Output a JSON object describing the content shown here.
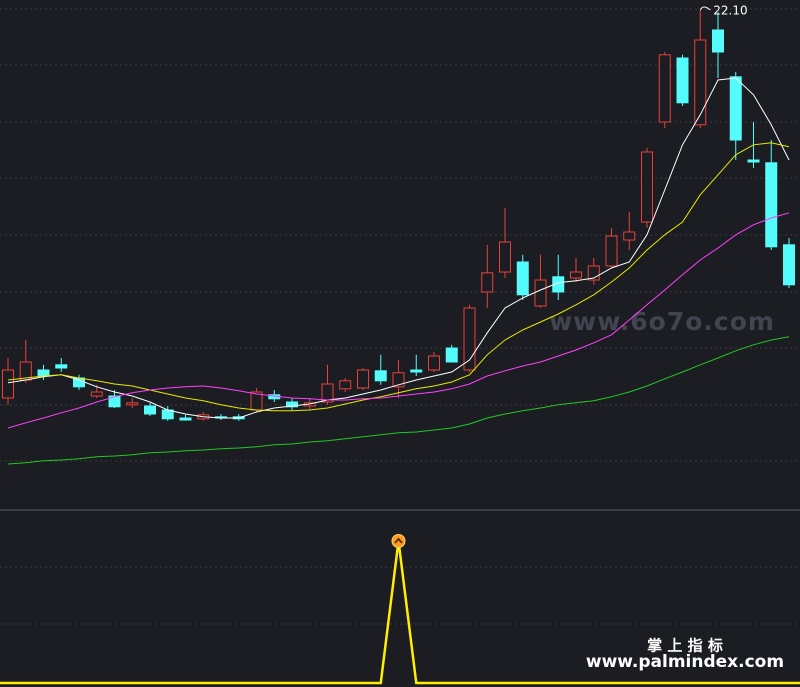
{
  "chart_data": [
    {
      "type": "candlestick",
      "up_color": "#e8413a",
      "down_color": "#54fcfc",
      "ylim": [
        9.6,
        22.35
      ],
      "open": [
        12.4,
        12.85,
        13.1,
        13.23,
        12.9,
        12.45,
        12.45,
        12.23,
        12.2,
        12.1,
        11.9,
        11.88,
        11.93,
        11.93,
        12.1,
        12.48,
        12.3,
        12.2,
        12.3,
        12.63,
        12.65,
        13.08,
        12.68,
        13.1,
        13.1,
        13.65,
        13.1,
        15.05,
        15.55,
        15.8,
        14.7,
        15.43,
        15.4,
        15.35,
        15.7,
        16.35,
        16.8,
        19.3,
        20.9,
        19.23,
        21.6,
        20.43,
        18.35,
        18.28,
        16.23
      ],
      "high": [
        13.4,
        13.85,
        13.23,
        13.4,
        12.98,
        12.73,
        12.6,
        12.4,
        12.28,
        12.2,
        11.98,
        12.05,
        12.0,
        12.0,
        12.65,
        12.6,
        12.4,
        12.4,
        13.23,
        12.9,
        13.15,
        13.48,
        13.35,
        13.48,
        13.55,
        13.73,
        14.73,
        16.23,
        17.15,
        15.98,
        15.98,
        15.98,
        15.9,
        15.9,
        16.65,
        17.05,
        18.65,
        21.05,
        20.98,
        22.1,
        22.05,
        20.55,
        19.3,
        18.85,
        16.4
      ],
      "low": [
        12.23,
        12.78,
        12.85,
        13.05,
        12.6,
        12.4,
        12.15,
        12.15,
        11.95,
        11.83,
        11.83,
        11.83,
        11.85,
        11.83,
        12.05,
        12.3,
        12.1,
        12.1,
        12.23,
        12.55,
        12.6,
        12.73,
        12.4,
        12.95,
        13.05,
        13.3,
        13.05,
        14.65,
        15.4,
        14.85,
        14.65,
        14.85,
        15.3,
        15.23,
        15.65,
        16.1,
        16.65,
        19.15,
        19.7,
        19.15,
        20.4,
        18.35,
        18.15,
        16.1,
        15.15
      ],
      "close": [
        13.1,
        13.3,
        12.95,
        13.15,
        12.68,
        12.55,
        12.18,
        12.28,
        12.0,
        11.88,
        11.85,
        11.98,
        11.9,
        11.88,
        12.55,
        12.38,
        12.18,
        12.28,
        12.75,
        12.83,
        13.1,
        12.83,
        13.03,
        13.05,
        13.45,
        13.3,
        14.65,
        15.53,
        16.3,
        14.98,
        15.35,
        15.05,
        15.55,
        15.7,
        16.45,
        16.55,
        18.55,
        20.98,
        19.78,
        21.35,
        21.05,
        18.85,
        18.3,
        16.18,
        15.23
      ],
      "lines": [
        {
          "color": "#ffffff",
          "values": [
            12.78,
            12.85,
            12.93,
            12.98,
            12.85,
            12.68,
            12.55,
            12.45,
            12.3,
            12.1,
            12.0,
            11.93,
            11.9,
            11.9,
            12.05,
            12.15,
            12.2,
            12.25,
            12.35,
            12.4,
            12.5,
            12.6,
            12.73,
            12.85,
            12.95,
            13.05,
            13.35,
            14.03,
            14.65,
            14.9,
            15.1,
            15.28,
            15.33,
            15.4,
            15.65,
            15.8,
            16.48,
            17.6,
            18.73,
            19.48,
            20.35,
            20.4,
            19.98,
            19.23,
            18.35
          ]
        },
        {
          "color": "#e8e800",
          "values": [
            12.85,
            12.9,
            12.95,
            12.98,
            12.9,
            12.83,
            12.75,
            12.7,
            12.6,
            12.5,
            12.4,
            12.33,
            12.23,
            12.15,
            12.1,
            12.08,
            12.08,
            12.1,
            12.15,
            12.25,
            12.35,
            12.43,
            12.53,
            12.63,
            12.7,
            12.8,
            12.98,
            13.48,
            13.85,
            14.1,
            14.3,
            14.5,
            14.73,
            14.98,
            15.3,
            15.65,
            16.1,
            16.48,
            16.8,
            17.48,
            17.98,
            18.48,
            18.73,
            18.78,
            18.68
          ]
        },
        {
          "color": "#ff40ff",
          "values": [
            11.65,
            11.78,
            11.9,
            12.03,
            12.15,
            12.3,
            12.43,
            12.53,
            12.6,
            12.65,
            12.68,
            12.7,
            12.65,
            12.58,
            12.5,
            12.45,
            12.4,
            12.38,
            12.35,
            12.35,
            12.38,
            12.4,
            12.45,
            12.5,
            12.55,
            12.63,
            12.75,
            12.95,
            13.08,
            13.2,
            13.3,
            13.45,
            13.6,
            13.78,
            13.98,
            14.35,
            14.73,
            15.1,
            15.48,
            15.85,
            16.15,
            16.48,
            16.73,
            16.9,
            17.03
          ]
        },
        {
          "color": "#22c822",
          "values": [
            10.75,
            10.78,
            10.83,
            10.85,
            10.88,
            10.93,
            10.95,
            10.98,
            11.03,
            11.05,
            11.08,
            11.1,
            11.13,
            11.15,
            11.18,
            11.23,
            11.25,
            11.3,
            11.33,
            11.38,
            11.43,
            11.48,
            11.53,
            11.55,
            11.6,
            11.65,
            11.75,
            11.9,
            12.0,
            12.08,
            12.15,
            12.23,
            12.28,
            12.33,
            12.43,
            12.55,
            12.7,
            12.88,
            13.05,
            13.23,
            13.4,
            13.58,
            13.73,
            13.85,
            13.93
          ]
        }
      ],
      "max_label": {
        "value": 22.1,
        "label": "22.10"
      },
      "watermark": "www.6o7o.com"
    },
    {
      "type": "signal",
      "color": "#ffee00",
      "marker_color": "#ff9a1a",
      "ylim": [
        0,
        1
      ],
      "values": [
        0,
        0,
        0,
        0,
        0,
        0,
        0,
        0,
        0,
        0,
        0,
        0,
        0,
        0,
        0,
        0,
        0,
        0,
        0,
        0,
        0,
        0,
        1,
        0,
        0,
        0,
        0,
        0,
        0,
        0,
        0,
        0,
        0,
        0,
        0,
        0,
        0,
        0,
        0,
        0,
        0,
        0,
        0,
        0,
        0
      ]
    }
  ],
  "footer": {
    "title": "掌 上 指 标",
    "url": "www.palmindex.com"
  }
}
